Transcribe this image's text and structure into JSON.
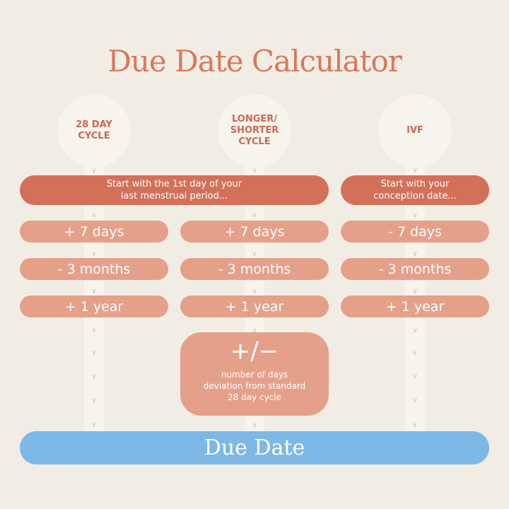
{
  "title": "Due Date Calculator",
  "columns": [
    {
      "label": "28 DAY\nCYCLE",
      "steps": [
        "+ 7 days",
        "- 3 months",
        "+ 1 year"
      ]
    },
    {
      "label": "LONGER/\nSHORTER\nCYCLE",
      "steps": [
        "+ 7 days",
        "- 3 months",
        "+ 1 year"
      ]
    },
    {
      "label": "IVF",
      "steps": [
        "- 7 days",
        "- 3 months",
        "+ 1 year"
      ]
    }
  ],
  "start_lmp": "Start with the 1st day of your\nlast menstrual period...",
  "start_ivf": "Start with your\nconception date...",
  "adjust": {
    "symbol": "+/−",
    "description": "number of days\ndeviation from standard\n28 day cycle"
  },
  "result": "Due Date",
  "colors": {
    "background": "#f1ede4",
    "title": "#d9785a",
    "start": "#d2705a",
    "step": "#e5a08a",
    "result": "#7db8e6"
  },
  "icons": {
    "connector": "chevron-down-icon"
  }
}
